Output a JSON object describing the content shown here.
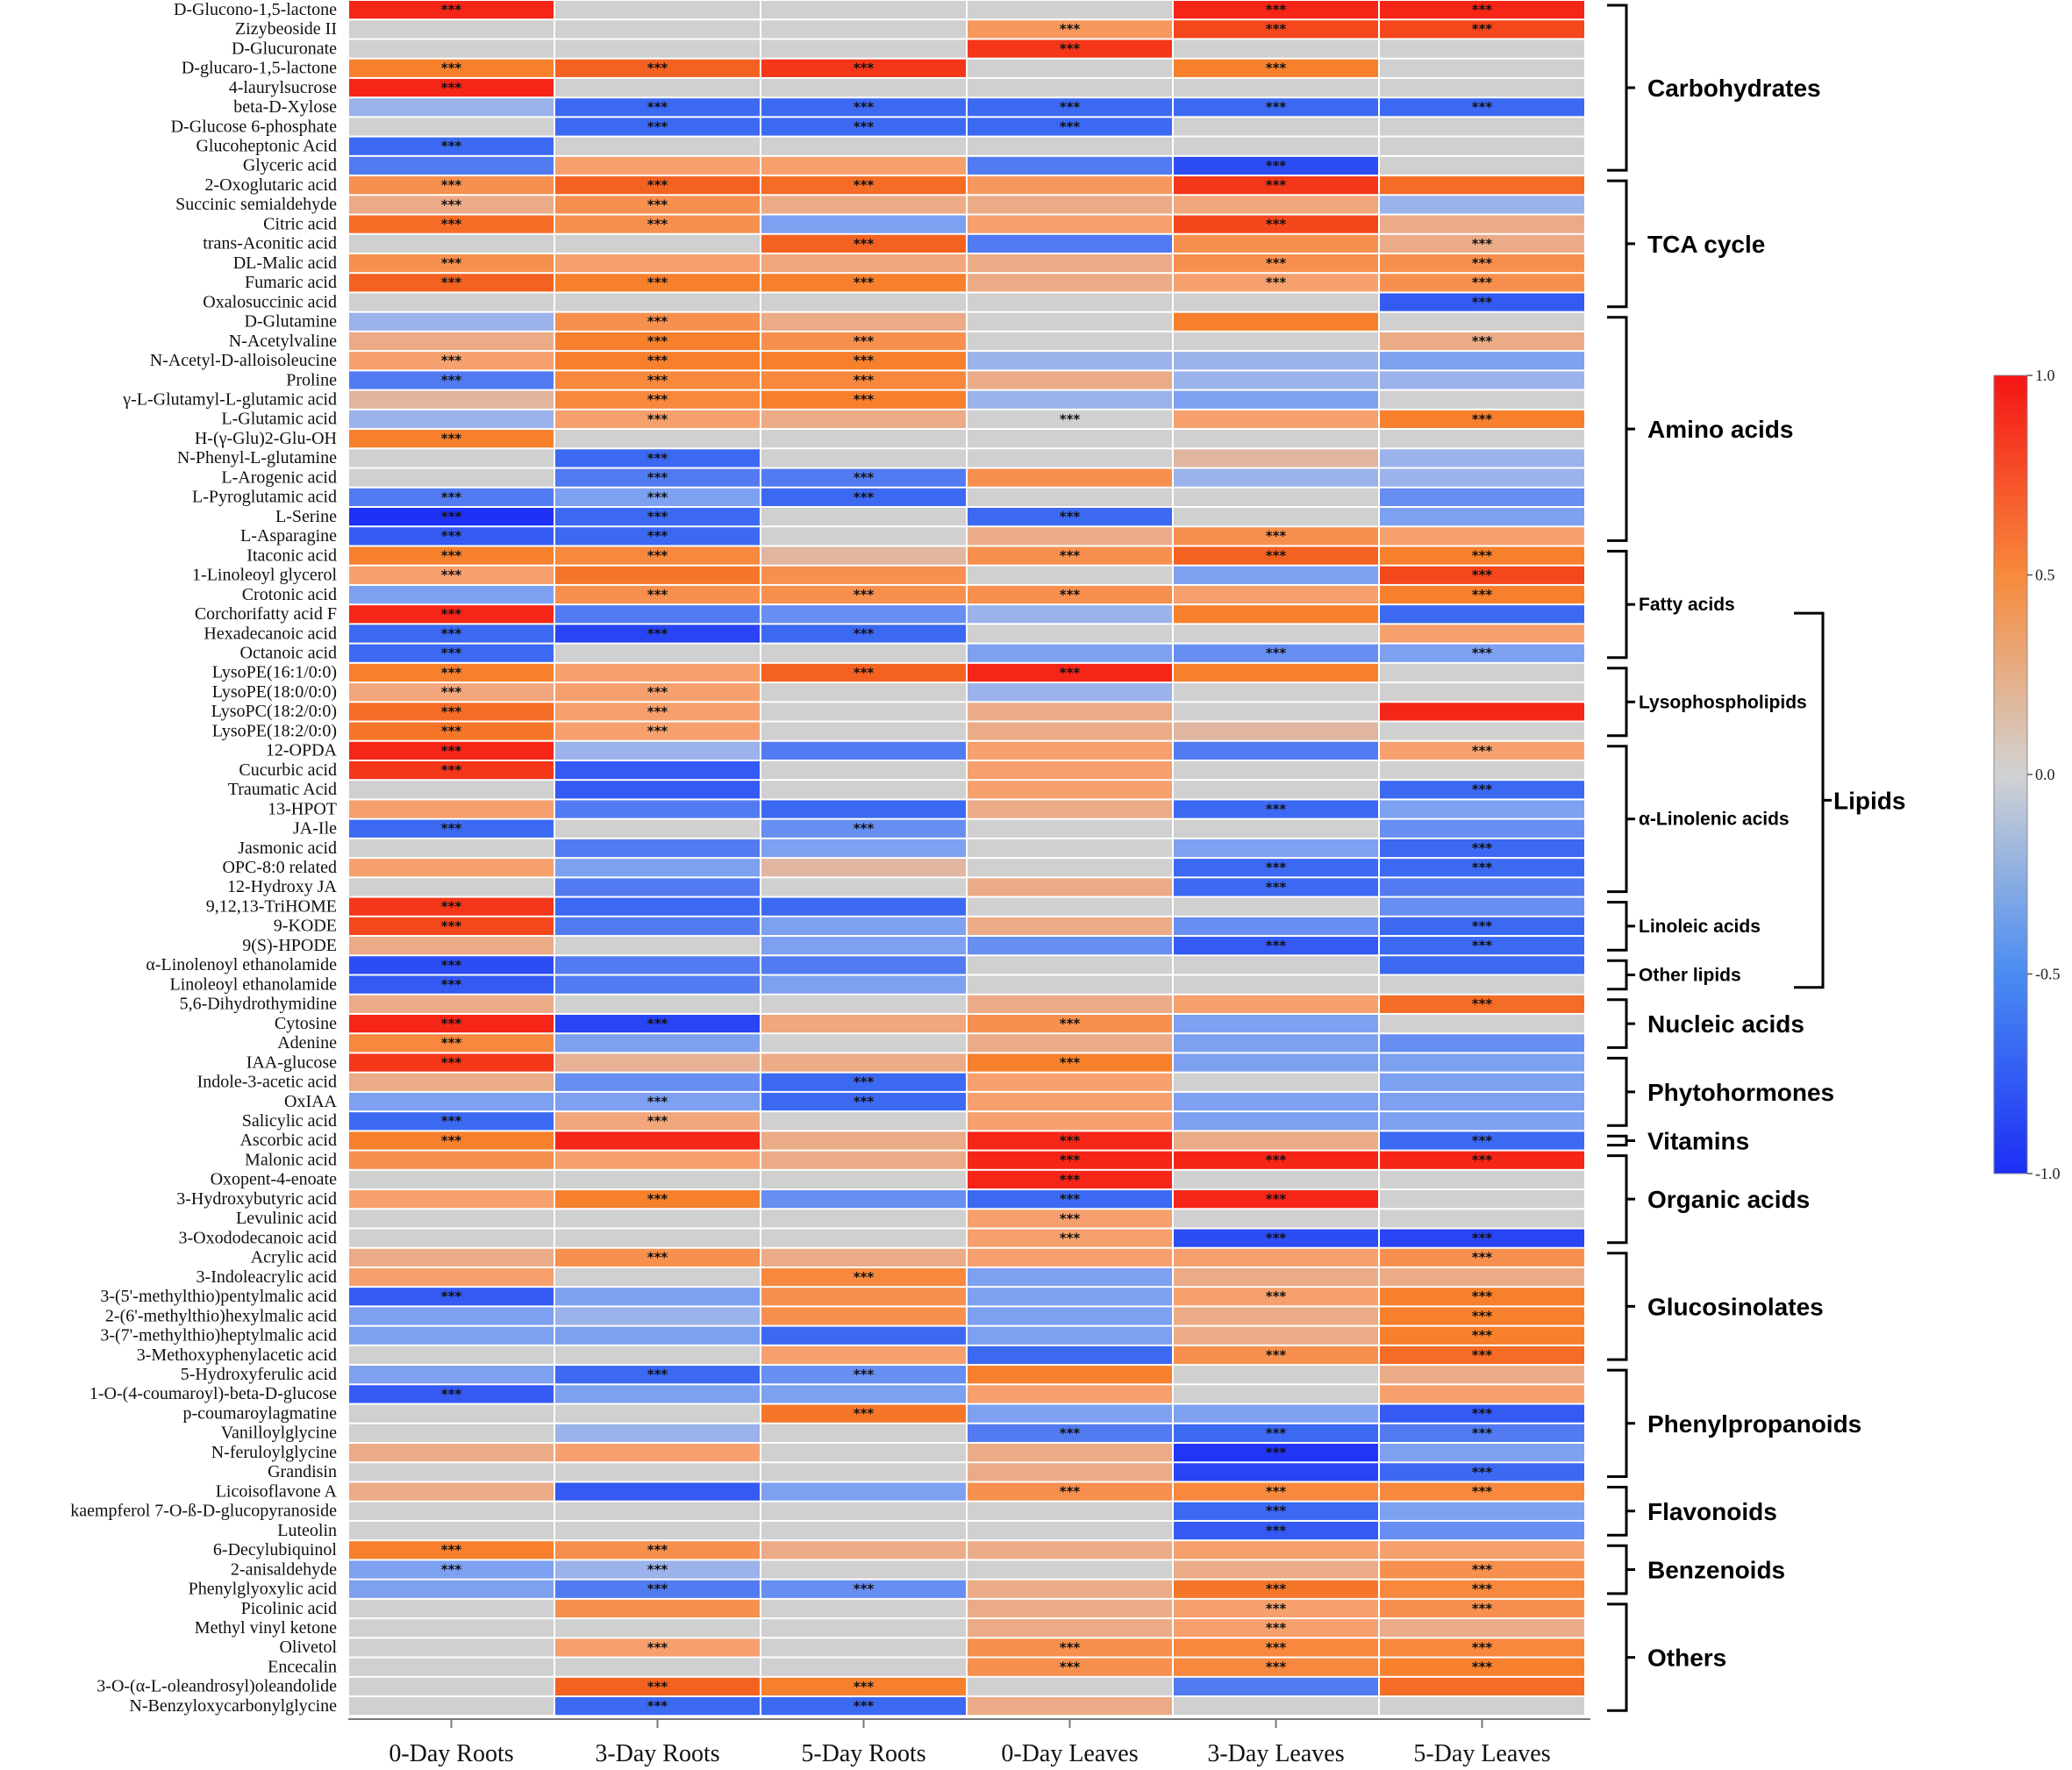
{
  "chart_data": {
    "type": "heatmap",
    "title": "",
    "columns": [
      "0-Day Roots",
      "3-Day Roots",
      "5-Day Roots",
      "0-Day Leaves",
      "3-Day Leaves",
      "5-Day Leaves"
    ],
    "rows": [
      "D-Glucono-1,5-lactone",
      "Zizybeoside II",
      "D-Glucuronate",
      "D-glucaro-1,5-lactone",
      "4-laurylsucrose",
      "beta-D-Xylose",
      "D-Glucose 6-phosphate",
      "Glucoheptonic Acid",
      "Glyceric acid",
      "2-Oxoglutaric acid",
      "Succinic semialdehyde",
      "Citric acid",
      "trans-Aconitic acid",
      "DL-Malic acid",
      "Fumaric acid",
      "Oxalosuccinic acid",
      "D-Glutamine",
      "N-Acetylvaline",
      "N-Acetyl-D-alloisoleucine",
      "Proline",
      "γ-L-Glutamyl-L-glutamic acid",
      "L-Glutamic acid",
      "H-(γ-Glu)2-Glu-OH",
      "N-Phenyl-L-glutamine",
      "L-Arogenic acid",
      "L-Pyroglutamic acid",
      "L-Serine",
      "L-Asparagine",
      "Itaconic acid",
      "1-Linoleoyl glycerol",
      "Crotonic acid",
      "Corchorifatty acid F",
      "Hexadecanoic acid",
      "Octanoic acid",
      "LysoPE(16:1/0:0)",
      "LysoPE(18:0/0:0)",
      "LysoPC(18:2/0:0)",
      "LysoPE(18:2/0:0)",
      "12-OPDA",
      "Cucurbic acid",
      "Traumatic Acid",
      "13-HPOT",
      "JA-Ile",
      "Jasmonic acid",
      "OPC-8:0 related",
      "12-Hydroxy JA",
      "9,12,13-TriHOME",
      "9-KODE",
      "9(S)-HPODE",
      "α-Linolenoyl ethanolamide",
      "Linoleoyl ethanolamide",
      "5,6-Dihydrothymidine",
      "Cytosine",
      "Adenine",
      "IAA-glucose",
      "Indole-3-acetic acid",
      "OxIAA",
      "Salicylic acid",
      "Ascorbic acid",
      "Malonic acid",
      "Oxopent-4-enoate",
      "3-Hydroxybutyric acid",
      "Levulinic acid",
      "3-Oxododecanoic acid",
      "Acrylic acid",
      "3-Indoleacrylic acid",
      "3-(5'-methylthio)pentylmalic acid",
      "2-(6'-methylthio)hexylmalic acid",
      "3-(7'-methylthio)heptylmalic acid",
      "3-Methoxyphenylacetic acid",
      "5-Hydroxyferulic acid",
      "1-O-(4-coumaroyl)-beta-D-glucose",
      "p-coumaroylagmatine",
      "Vanilloylglycine",
      "N-feruloylglycine",
      "Grandisin",
      "Licoisoflavone A",
      "kaempferol 7-O-ß-D-glucopyranoside",
      "Luteolin",
      "6-Decylubiquinol",
      "2-anisaldehyde",
      "Phenylglyoxylic acid",
      "Picolinic acid",
      "Methyl vinyl ketone",
      "Olivetol",
      "Encecalin",
      "3-O-(α-L-oleandrosyl)oleandolide",
      "N-Benzyloxycarbonylglycine"
    ],
    "values": [
      [
        0.95,
        0,
        0,
        0,
        0.95,
        0.95
      ],
      [
        0,
        0,
        0,
        0.45,
        0.85,
        0.85
      ],
      [
        0,
        0,
        0,
        0.9,
        0,
        0
      ],
      [
        0.6,
        0.75,
        0.9,
        0,
        0.6,
        0
      ],
      [
        0.95,
        0,
        0,
        0,
        0,
        0
      ],
      [
        -0.2,
        -0.6,
        -0.6,
        -0.6,
        -0.6,
        -0.6
      ],
      [
        0,
        -0.6,
        -0.6,
        -0.6,
        0,
        0
      ],
      [
        -0.6,
        0,
        0,
        0,
        0,
        0
      ],
      [
        -0.5,
        0.4,
        0.4,
        -0.5,
        -0.8,
        0
      ],
      [
        0.5,
        0.75,
        0.7,
        0.45,
        0.9,
        0.7
      ],
      [
        0.3,
        0.5,
        0.3,
        0.3,
        0.35,
        -0.2
      ],
      [
        0.7,
        0.5,
        -0.3,
        0.4,
        0.85,
        0.3
      ],
      [
        0,
        0,
        0.75,
        -0.5,
        0.5,
        0.3
      ],
      [
        0.5,
        0.4,
        0.35,
        0.3,
        0.5,
        0.5
      ],
      [
        0.75,
        0.6,
        0.6,
        0.3,
        0.4,
        0.5
      ],
      [
        0,
        0,
        0,
        0,
        0,
        -0.7
      ],
      [
        -0.2,
        0.5,
        0.3,
        0,
        0.6,
        0
      ],
      [
        0.3,
        0.6,
        0.5,
        0,
        0,
        0.3
      ],
      [
        0.4,
        0.6,
        0.6,
        -0.2,
        -0.2,
        -0.3
      ],
      [
        -0.5,
        0.55,
        0.55,
        0.3,
        -0.2,
        -0.2
      ],
      [
        0.2,
        0.55,
        0.6,
        -0.2,
        -0.3,
        0
      ],
      [
        -0.2,
        0.4,
        0.3,
        0,
        0.4,
        0.6
      ],
      [
        0.6,
        0,
        0,
        0,
        0,
        0
      ],
      [
        0,
        -0.6,
        0,
        0,
        0.2,
        -0.2
      ],
      [
        0,
        -0.5,
        -0.5,
        0.5,
        -0.2,
        -0.2
      ],
      [
        -0.5,
        -0.3,
        -0.6,
        0,
        0,
        -0.4
      ],
      [
        -0.98,
        -0.6,
        0,
        -0.6,
        0,
        -0.3
      ],
      [
        -0.7,
        -0.6,
        0,
        0.3,
        0.5,
        0.4
      ],
      [
        0.6,
        0.55,
        0.2,
        0.5,
        0.75,
        0.6
      ],
      [
        0.4,
        0.65,
        0.5,
        0,
        -0.3,
        0.85
      ],
      [
        -0.3,
        0.5,
        0.5,
        0.5,
        0.4,
        0.6
      ],
      [
        0.95,
        -0.5,
        -0.4,
        -0.2,
        0.6,
        -0.6
      ],
      [
        -0.6,
        -0.85,
        -0.6,
        0,
        0,
        0.4
      ],
      [
        -0.6,
        0,
        0,
        -0.3,
        -0.4,
        -0.3
      ],
      [
        0.6,
        0.4,
        0.75,
        0.95,
        0.6,
        0
      ],
      [
        0.35,
        0.4,
        0,
        -0.2,
        0,
        0
      ],
      [
        0.7,
        0.4,
        0,
        0.3,
        0,
        0.95
      ],
      [
        0.65,
        0.4,
        0,
        0.3,
        0.2,
        0
      ],
      [
        0.95,
        -0.2,
        -0.5,
        0.4,
        -0.5,
        0.4
      ],
      [
        0.9,
        -0.7,
        0,
        0.4,
        0,
        0
      ],
      [
        0,
        -0.7,
        0,
        0.4,
        0,
        -0.6
      ],
      [
        0.4,
        -0.5,
        -0.6,
        0.3,
        -0.6,
        -0.3
      ],
      [
        -0.6,
        0,
        -0.4,
        0,
        0,
        -0.4
      ],
      [
        0,
        -0.5,
        -0.3,
        0,
        -0.3,
        -0.6
      ],
      [
        0.4,
        -0.3,
        0.2,
        0,
        -0.6,
        -0.6
      ],
      [
        0,
        -0.5,
        0,
        0.3,
        -0.6,
        -0.5
      ],
      [
        0.9,
        -0.6,
        -0.6,
        0,
        0,
        -0.4
      ],
      [
        0.85,
        -0.5,
        -0.3,
        0.3,
        -0.4,
        -0.6
      ],
      [
        0.3,
        0,
        -0.3,
        -0.4,
        -0.7,
        -0.6
      ],
      [
        -0.8,
        -0.5,
        -0.5,
        0,
        0,
        -0.6
      ],
      [
        -0.7,
        -0.5,
        -0.3,
        0,
        0,
        0
      ],
      [
        0.3,
        0,
        0,
        0.3,
        0.4,
        0.7
      ],
      [
        0.95,
        -0.85,
        0.35,
        0.5,
        -0.3,
        0
      ],
      [
        0.55,
        -0.3,
        0,
        0.3,
        -0.3,
        -0.4
      ],
      [
        0.9,
        0.25,
        0.3,
        0.6,
        -0.3,
        -0.3
      ],
      [
        0.3,
        -0.4,
        -0.6,
        0.4,
        0,
        -0.3
      ],
      [
        -0.3,
        -0.3,
        -0.6,
        0.4,
        -0.3,
        -0.3
      ],
      [
        -0.6,
        0.35,
        0,
        0.4,
        -0.3,
        -0.3
      ],
      [
        0.6,
        0.95,
        0.3,
        0.95,
        0.3,
        -0.6
      ],
      [
        0.5,
        0.4,
        0.3,
        0.95,
        0.95,
        0.95
      ],
      [
        0,
        0,
        0,
        0.95,
        0,
        0
      ],
      [
        0.4,
        0.6,
        -0.4,
        -0.6,
        0.95,
        0
      ],
      [
        0,
        0,
        0,
        0.4,
        0,
        0
      ],
      [
        0,
        0,
        0,
        0.4,
        -0.8,
        -0.85
      ],
      [
        0.3,
        0.5,
        0.3,
        0.4,
        0.4,
        0.5
      ],
      [
        0.4,
        0,
        0.55,
        -0.3,
        0.3,
        0.3
      ],
      [
        -0.7,
        -0.3,
        0.5,
        -0.3,
        0.4,
        0.6
      ],
      [
        -0.3,
        -0.2,
        0.5,
        -0.3,
        0.3,
        0.6
      ],
      [
        -0.3,
        -0.3,
        -0.6,
        -0.3,
        0.3,
        0.6
      ],
      [
        0,
        0,
        0.4,
        -0.6,
        0.5,
        0.7
      ],
      [
        -0.3,
        -0.6,
        -0.4,
        0.6,
        0,
        0.3
      ],
      [
        -0.7,
        -0.3,
        -0.3,
        0.4,
        0,
        0.4
      ],
      [
        0,
        0,
        0.65,
        -0.3,
        -0.3,
        -0.7
      ],
      [
        0,
        -0.2,
        0,
        -0.5,
        -0.6,
        -0.5
      ],
      [
        0.3,
        0.4,
        0,
        0.3,
        -0.95,
        -0.3
      ],
      [
        0,
        0,
        0,
        0.3,
        -0.85,
        -0.6
      ],
      [
        0.3,
        -0.7,
        -0.3,
        0.5,
        0.55,
        0.55
      ],
      [
        0,
        0,
        0,
        0,
        -0.6,
        -0.3
      ],
      [
        0,
        0,
        0,
        0,
        -0.7,
        -0.4
      ],
      [
        0.6,
        0.5,
        0.3,
        0.3,
        0.4,
        0.4
      ],
      [
        -0.3,
        -0.2,
        0,
        0,
        0.3,
        0.5
      ],
      [
        -0.3,
        -0.5,
        -0.4,
        0.3,
        0.65,
        0.55
      ],
      [
        0,
        0.5,
        0,
        0.3,
        0.4,
        0.5
      ],
      [
        0,
        0,
        0,
        0.3,
        0.4,
        0.3
      ],
      [
        0,
        0.4,
        0,
        0.5,
        0.55,
        0.55
      ],
      [
        0,
        0,
        0,
        0.5,
        0.55,
        0.6
      ],
      [
        0,
        0.75,
        0.6,
        0,
        -0.5,
        0.7
      ],
      [
        0,
        -0.6,
        -0.6,
        0.3,
        0,
        0
      ]
    ],
    "significance": [
      [
        1,
        0,
        0,
        0,
        1,
        1
      ],
      [
        0,
        0,
        0,
        1,
        1,
        1
      ],
      [
        0,
        0,
        0,
        1,
        0,
        0
      ],
      [
        1,
        1,
        1,
        0,
        1,
        0
      ],
      [
        1,
        0,
        0,
        0,
        0,
        0
      ],
      [
        0,
        1,
        1,
        1,
        1,
        1
      ],
      [
        0,
        1,
        1,
        1,
        0,
        0
      ],
      [
        1,
        0,
        0,
        0,
        0,
        0
      ],
      [
        0,
        0,
        0,
        0,
        1,
        0
      ],
      [
        1,
        1,
        1,
        0,
        1,
        0
      ],
      [
        1,
        1,
        0,
        0,
        0,
        0
      ],
      [
        1,
        1,
        0,
        0,
        1,
        0
      ],
      [
        0,
        0,
        1,
        0,
        0,
        1
      ],
      [
        1,
        0,
        0,
        0,
        1,
        1
      ],
      [
        1,
        1,
        1,
        0,
        1,
        1
      ],
      [
        0,
        0,
        0,
        0,
        0,
        1
      ],
      [
        0,
        1,
        0,
        0,
        0,
        0
      ],
      [
        0,
        1,
        1,
        0,
        0,
        1
      ],
      [
        1,
        1,
        1,
        0,
        0,
        0
      ],
      [
        1,
        1,
        1,
        0,
        0,
        0
      ],
      [
        0,
        1,
        1,
        0,
        0,
        0
      ],
      [
        0,
        1,
        0,
        1,
        0,
        1
      ],
      [
        1,
        0,
        0,
        0,
        0,
        0
      ],
      [
        0,
        1,
        0,
        0,
        0,
        0
      ],
      [
        0,
        1,
        1,
        0,
        0,
        0
      ],
      [
        1,
        1,
        1,
        0,
        0,
        0
      ],
      [
        1,
        1,
        0,
        1,
        0,
        0
      ],
      [
        1,
        1,
        0,
        0,
        1,
        0
      ],
      [
        1,
        1,
        0,
        1,
        1,
        1
      ],
      [
        1,
        0,
        0,
        0,
        0,
        1
      ],
      [
        0,
        1,
        1,
        1,
        0,
        1
      ],
      [
        1,
        0,
        0,
        0,
        0,
        0
      ],
      [
        1,
        1,
        1,
        0,
        0,
        0
      ],
      [
        1,
        0,
        0,
        0,
        1,
        1
      ],
      [
        1,
        0,
        1,
        1,
        0,
        0
      ],
      [
        1,
        1,
        0,
        0,
        0,
        0
      ],
      [
        1,
        1,
        0,
        0,
        0,
        0
      ],
      [
        1,
        1,
        0,
        0,
        0,
        0
      ],
      [
        1,
        0,
        0,
        0,
        0,
        1
      ],
      [
        1,
        0,
        0,
        0,
        0,
        0
      ],
      [
        0,
        0,
        0,
        0,
        0,
        1
      ],
      [
        0,
        0,
        0,
        0,
        1,
        0
      ],
      [
        1,
        0,
        1,
        0,
        0,
        0
      ],
      [
        0,
        0,
        0,
        0,
        0,
        1
      ],
      [
        0,
        0,
        0,
        0,
        1,
        1
      ],
      [
        0,
        0,
        0,
        0,
        1,
        0
      ],
      [
        1,
        0,
        0,
        0,
        0,
        0
      ],
      [
        1,
        0,
        0,
        0,
        0,
        1
      ],
      [
        0,
        0,
        0,
        0,
        1,
        1
      ],
      [
        1,
        0,
        0,
        0,
        0,
        0
      ],
      [
        1,
        0,
        0,
        0,
        0,
        0
      ],
      [
        0,
        0,
        0,
        0,
        0,
        1
      ],
      [
        1,
        1,
        0,
        1,
        0,
        0
      ],
      [
        1,
        0,
        0,
        0,
        0,
        0
      ],
      [
        1,
        0,
        0,
        1,
        0,
        0
      ],
      [
        0,
        0,
        1,
        0,
        0,
        0
      ],
      [
        0,
        1,
        1,
        0,
        0,
        0
      ],
      [
        1,
        1,
        0,
        0,
        0,
        0
      ],
      [
        1,
        0,
        0,
        1,
        0,
        1
      ],
      [
        0,
        0,
        0,
        1,
        1,
        1
      ],
      [
        0,
        0,
        0,
        1,
        0,
        0
      ],
      [
        0,
        1,
        0,
        1,
        1,
        0
      ],
      [
        0,
        0,
        0,
        1,
        0,
        0
      ],
      [
        0,
        0,
        0,
        1,
        1,
        1
      ],
      [
        0,
        1,
        0,
        0,
        0,
        1
      ],
      [
        0,
        0,
        1,
        0,
        0,
        0
      ],
      [
        1,
        0,
        0,
        0,
        1,
        1
      ],
      [
        0,
        0,
        0,
        0,
        0,
        1
      ],
      [
        0,
        0,
        0,
        0,
        0,
        1
      ],
      [
        0,
        0,
        0,
        0,
        1,
        1
      ],
      [
        0,
        1,
        1,
        0,
        0,
        0
      ],
      [
        1,
        0,
        0,
        0,
        0,
        0
      ],
      [
        0,
        0,
        1,
        0,
        0,
        1
      ],
      [
        0,
        0,
        0,
        1,
        1,
        1
      ],
      [
        0,
        0,
        0,
        0,
        1,
        0
      ],
      [
        0,
        0,
        0,
        0,
        0,
        1
      ],
      [
        0,
        0,
        0,
        1,
        1,
        1
      ],
      [
        0,
        0,
        0,
        0,
        1,
        0
      ],
      [
        0,
        0,
        0,
        0,
        1,
        0
      ],
      [
        1,
        1,
        0,
        0,
        0,
        0
      ],
      [
        1,
        1,
        0,
        0,
        0,
        1
      ],
      [
        0,
        1,
        1,
        0,
        1,
        1
      ],
      [
        0,
        0,
        0,
        0,
        1,
        1
      ],
      [
        0,
        0,
        0,
        0,
        1,
        0
      ],
      [
        0,
        1,
        0,
        1,
        1,
        1
      ],
      [
        0,
        0,
        0,
        1,
        1,
        1
      ],
      [
        0,
        1,
        1,
        0,
        0,
        0
      ],
      [
        0,
        1,
        1,
        0,
        0,
        0
      ]
    ],
    "significance_mark": "***",
    "groups": [
      {
        "label": "Carbohydrates",
        "start": 0,
        "end": 8
      },
      {
        "label": "TCA cycle",
        "start": 9,
        "end": 15
      },
      {
        "label": "Amino acids",
        "start": 16,
        "end": 27
      },
      {
        "label": "Fatty acids",
        "start": 28,
        "end": 33
      },
      {
        "label": "Lysophospholipids",
        "start": 34,
        "end": 37
      },
      {
        "label": "α-Linolenic acids",
        "start": 38,
        "end": 45
      },
      {
        "label": "Linoleic acids",
        "start": 46,
        "end": 48
      },
      {
        "label": "Other lipids",
        "start": 49,
        "end": 50
      },
      {
        "label": "Nucleic acids",
        "start": 51,
        "end": 53
      },
      {
        "label": "Phytohormones",
        "start": 54,
        "end": 57
      },
      {
        "label": "Vitamins",
        "start": 58,
        "end": 58
      },
      {
        "label": "Organic acids",
        "start": 59,
        "end": 63
      },
      {
        "label": "Glucosinolates",
        "start": 64,
        "end": 69
      },
      {
        "label": "Phenylpropanoids",
        "start": 70,
        "end": 75
      },
      {
        "label": "Flavonoids",
        "start": 76,
        "end": 78
      },
      {
        "label": "Benzenoids",
        "start": 79,
        "end": 81
      },
      {
        "label": "Others",
        "start": 82,
        "end": 87
      }
    ],
    "supergroup": {
      "label": "Lipids",
      "start": 31,
      "end": 50
    },
    "colorbar": {
      "min": -1.0,
      "max": 1.0,
      "ticks": [
        "1.0",
        "0.5",
        "0.0",
        "-0.5",
        "-1.0"
      ]
    },
    "colors": {
      "low": "#1c2ef5",
      "mid": "#cfcfcf",
      "high": "#f51414"
    }
  }
}
